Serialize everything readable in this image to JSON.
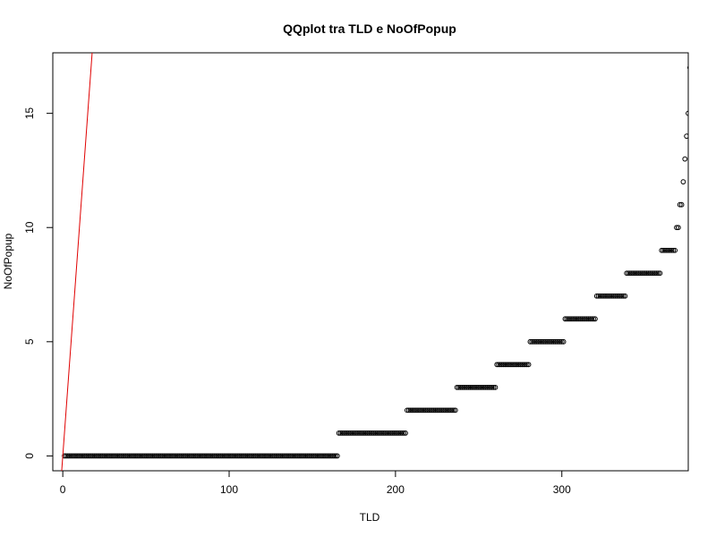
{
  "chart_data": {
    "type": "scatter",
    "title": "QQplot tra TLD e NoOfPopup",
    "xlabel": "TLD",
    "ylabel": "NoOfPopup",
    "xlim": [
      -6,
      376
    ],
    "ylim": [
      -0.65,
      17.65
    ],
    "xticks": [
      0,
      100,
      200,
      300
    ],
    "yticks": [
      0,
      5,
      10,
      15
    ],
    "point_marker": "open-circle",
    "point_color": "#000000",
    "reference_line": {
      "slope": 1,
      "intercept": 0,
      "color": "#e00000"
    },
    "x_start": 1,
    "y_counts": [
      {
        "y": 0,
        "count": 165
      },
      {
        "y": 1,
        "count": 41
      },
      {
        "y": 2,
        "count": 30
      },
      {
        "y": 3,
        "count": 24
      },
      {
        "y": 4,
        "count": 20
      },
      {
        "y": 5,
        "count": 21
      },
      {
        "y": 6,
        "count": 19
      },
      {
        "y": 7,
        "count": 18
      },
      {
        "y": 8,
        "count": 21
      },
      {
        "y": 9,
        "count": 9
      },
      {
        "y": 10,
        "count": 2
      },
      {
        "y": 11,
        "count": 2
      },
      {
        "y": 12,
        "count": 1
      },
      {
        "y": 13,
        "count": 1
      },
      {
        "y": 14,
        "count": 1
      },
      {
        "y": 15,
        "count": 1
      },
      {
        "y": 17,
        "count": 1
      }
    ]
  }
}
